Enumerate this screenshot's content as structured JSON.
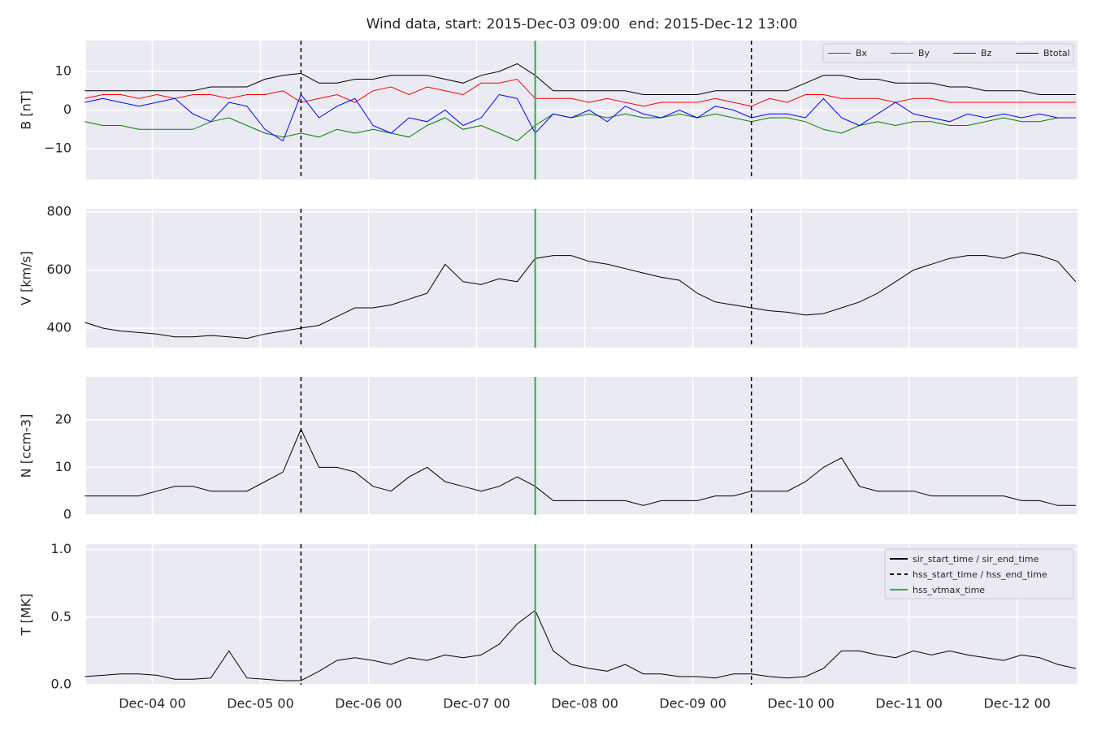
{
  "chart_data": {
    "type": "line",
    "title": "Wind data, start: 2015-Dec-03 09:00  end: 2015-Dec-12 13:00",
    "x": [
      "2015-12-03T09:00",
      "2015-12-03T13:00",
      "2015-12-03T17:00",
      "2015-12-03T21:00",
      "2015-12-04T01:00",
      "2015-12-04T05:00",
      "2015-12-04T09:00",
      "2015-12-04T13:00",
      "2015-12-04T17:00",
      "2015-12-04T21:00",
      "2015-12-05T01:00",
      "2015-12-05T05:00",
      "2015-12-05T09:00",
      "2015-12-05T13:00",
      "2015-12-05T17:00",
      "2015-12-05T21:00",
      "2015-12-06T01:00",
      "2015-12-06T05:00",
      "2015-12-06T09:00",
      "2015-12-06T13:00",
      "2015-12-06T17:00",
      "2015-12-06T21:00",
      "2015-12-07T01:00",
      "2015-12-07T05:00",
      "2015-12-07T09:00",
      "2015-12-07T13:00",
      "2015-12-07T17:00",
      "2015-12-07T21:00",
      "2015-12-08T01:00",
      "2015-12-08T05:00",
      "2015-12-08T09:00",
      "2015-12-08T13:00",
      "2015-12-08T17:00",
      "2015-12-08T21:00",
      "2015-12-09T01:00",
      "2015-12-09T05:00",
      "2015-12-09T09:00",
      "2015-12-09T13:00",
      "2015-12-09T17:00",
      "2015-12-09T21:00",
      "2015-12-10T01:00",
      "2015-12-10T05:00",
      "2015-12-10T09:00",
      "2015-12-10T13:00",
      "2015-12-10T17:00",
      "2015-12-10T21:00",
      "2015-12-11T01:00",
      "2015-12-11T05:00",
      "2015-12-11T09:00",
      "2015-12-11T13:00",
      "2015-12-11T17:00",
      "2015-12-11T21:00",
      "2015-12-12T01:00",
      "2015-12-12T05:00",
      "2015-12-12T09:00",
      "2015-12-12T13:00"
    ],
    "xlim": [
      "2015-12-03T09:18",
      "2015-12-12T13:24"
    ],
    "xticks": [
      {
        "value": "2015-12-04T00:00",
        "label": "Dec-04 00"
      },
      {
        "value": "2015-12-05T00:00",
        "label": "Dec-05 00"
      },
      {
        "value": "2015-12-06T00:00",
        "label": "Dec-06 00"
      },
      {
        "value": "2015-12-07T00:00",
        "label": "Dec-07 00"
      },
      {
        "value": "2015-12-08T00:00",
        "label": "Dec-08 00"
      },
      {
        "value": "2015-12-09T00:00",
        "label": "Dec-09 00"
      },
      {
        "value": "2015-12-10T00:00",
        "label": "Dec-10 00"
      },
      {
        "value": "2015-12-11T00:00",
        "label": "Dec-11 00"
      },
      {
        "value": "2015-12-12T00:00",
        "label": "Dec-12 00"
      }
    ],
    "grid": true,
    "panels": [
      {
        "ylabel": "B [nT]",
        "ylim": [
          -18,
          18
        ],
        "yticks": [
          {
            "value": -10,
            "label": "−10"
          },
          0,
          10
        ],
        "legend": "upper right",
        "series": [
          {
            "name": "Bx",
            "color": "#ff0000",
            "values": [
              3,
              4,
              4,
              3,
              4,
              3,
              4,
              4,
              3,
              4,
              4,
              5,
              2,
              3,
              4,
              2,
              5,
              6,
              4,
              6,
              5,
              4,
              7,
              7,
              8,
              3,
              3,
              3,
              2,
              3,
              2,
              1,
              2,
              2,
              2,
              3,
              2,
              1,
              3,
              2,
              4,
              4,
              3,
              3,
              3,
              2,
              3,
              3,
              2,
              2,
              2,
              2,
              2,
              2,
              2,
              2
            ]
          },
          {
            "name": "By",
            "color": "#008000",
            "values": [
              -3,
              -4,
              -4,
              -5,
              -5,
              -5,
              -5,
              -3,
              -2,
              -4,
              -6,
              -7,
              -6,
              -7,
              -5,
              -6,
              -5,
              -6,
              -7,
              -4,
              -2,
              -5,
              -4,
              -6,
              -8,
              -4,
              -1,
              -2,
              -1,
              -2,
              -1,
              -2,
              -2,
              -1,
              -2,
              -1,
              -2,
              -3,
              -2,
              -2,
              -3,
              -5,
              -6,
              -4,
              -3,
              -4,
              -3,
              -3,
              -4,
              -4,
              -3,
              -2,
              -3,
              -3,
              -2,
              -2
            ]
          },
          {
            "name": "Bz",
            "color": "#0000ff",
            "values": [
              2,
              3,
              2,
              1,
              2,
              3,
              -1,
              -3,
              2,
              1,
              -5,
              -8,
              4,
              -2,
              1,
              3,
              -4,
              -6,
              -2,
              -3,
              0,
              -4,
              -2,
              4,
              3,
              -6,
              -1,
              -2,
              0,
              -3,
              1,
              -1,
              -2,
              0,
              -2,
              1,
              0,
              -2,
              -1,
              -1,
              -2,
              3,
              -2,
              -4,
              -1,
              2,
              -1,
              -2,
              -3,
              -1,
              -2,
              -1,
              -2,
              -1,
              -2,
              -2
            ]
          },
          {
            "name": "Btotal",
            "color": "#000000",
            "values": [
              5,
              5,
              5,
              5,
              5,
              5,
              5,
              6,
              6,
              6,
              8,
              9,
              9.5,
              7,
              7,
              8,
              8,
              9,
              9,
              9,
              8,
              7,
              9,
              10,
              12,
              9,
              5,
              5,
              5,
              5,
              5,
              4,
              4,
              4,
              4,
              5,
              5,
              5,
              5,
              5,
              7,
              9,
              9,
              8,
              8,
              7,
              7,
              7,
              6,
              6,
              5,
              5,
              5,
              4,
              4,
              4
            ]
          }
        ]
      },
      {
        "ylabel": "V [km/s]",
        "ylim": [
          333,
          811
        ],
        "yticks": [
          400,
          600,
          800
        ],
        "series": [
          {
            "name": "V",
            "color": "#000000",
            "values": [
              420,
              400,
              390,
              385,
              380,
              370,
              370,
              375,
              370,
              365,
              380,
              390,
              400,
              410,
              440,
              470,
              470,
              480,
              500,
              520,
              620,
              560,
              550,
              570,
              560,
              640,
              650,
              650,
              630,
              620,
              605,
              590,
              575,
              565,
              520,
              490,
              480,
              470,
              460,
              455,
              445,
              450,
              470,
              490,
              520,
              560,
              600,
              620,
              640,
              650,
              650,
              640,
              660,
              650,
              630,
              560
            ]
          }
        ]
      },
      {
        "ylabel": "N [ccm-3]",
        "ylim": [
          0,
          29
        ],
        "yticks": [
          0,
          10,
          20
        ],
        "series": [
          {
            "name": "N",
            "color": "#000000",
            "values": [
              4,
              4,
              4,
              4,
              5,
              6,
              6,
              5,
              5,
              5,
              7,
              9,
              18,
              10,
              10,
              9,
              6,
              5,
              8,
              10,
              7,
              6,
              5,
              6,
              8,
              6,
              3,
              3,
              3,
              3,
              3,
              2,
              3,
              3,
              3,
              4,
              4,
              5,
              5,
              5,
              7,
              10,
              12,
              6,
              5,
              5,
              5,
              4,
              4,
              4,
              4,
              4,
              3,
              3,
              2,
              2
            ]
          }
        ]
      },
      {
        "ylabel": "T [MK]",
        "ylim": [
          0,
          1.04
        ],
        "yticks": [
          {
            "value": 0,
            "label": "0.0"
          },
          0.5,
          {
            "value": 1,
            "label": "1.0"
          }
        ],
        "series": [
          {
            "name": "T",
            "color": "#000000",
            "values": [
              0.06,
              0.07,
              0.08,
              0.08,
              0.07,
              0.04,
              0.04,
              0.05,
              0.25,
              0.05,
              0.04,
              0.03,
              0.03,
              0.1,
              0.18,
              0.2,
              0.18,
              0.15,
              0.2,
              0.18,
              0.22,
              0.2,
              0.22,
              0.3,
              0.45,
              0.55,
              0.25,
              0.15,
              0.12,
              0.1,
              0.15,
              0.08,
              0.08,
              0.06,
              0.06,
              0.05,
              0.08,
              0.08,
              0.06,
              0.05,
              0.06,
              0.12,
              0.25,
              0.25,
              0.22,
              0.2,
              0.25,
              0.22,
              0.25,
              0.22,
              0.2,
              0.18,
              0.22,
              0.2,
              0.15,
              0.12
            ]
          }
        ]
      }
    ],
    "markers": [
      {
        "name": "sir_start_time / sir_end_time",
        "color": "#000000",
        "style": "solid",
        "x": []
      },
      {
        "name": "hss_start_time / hss_end_time",
        "color": "#000000",
        "style": "dashed",
        "x": [
          "2015-12-05T09:00",
          "2015-12-09T13:00"
        ]
      },
      {
        "name": "hss_vtmax_time",
        "color": "#3aa655",
        "style": "solid",
        "x": [
          "2015-12-07T13:00"
        ]
      }
    ],
    "markers_legend": "upper right"
  }
}
